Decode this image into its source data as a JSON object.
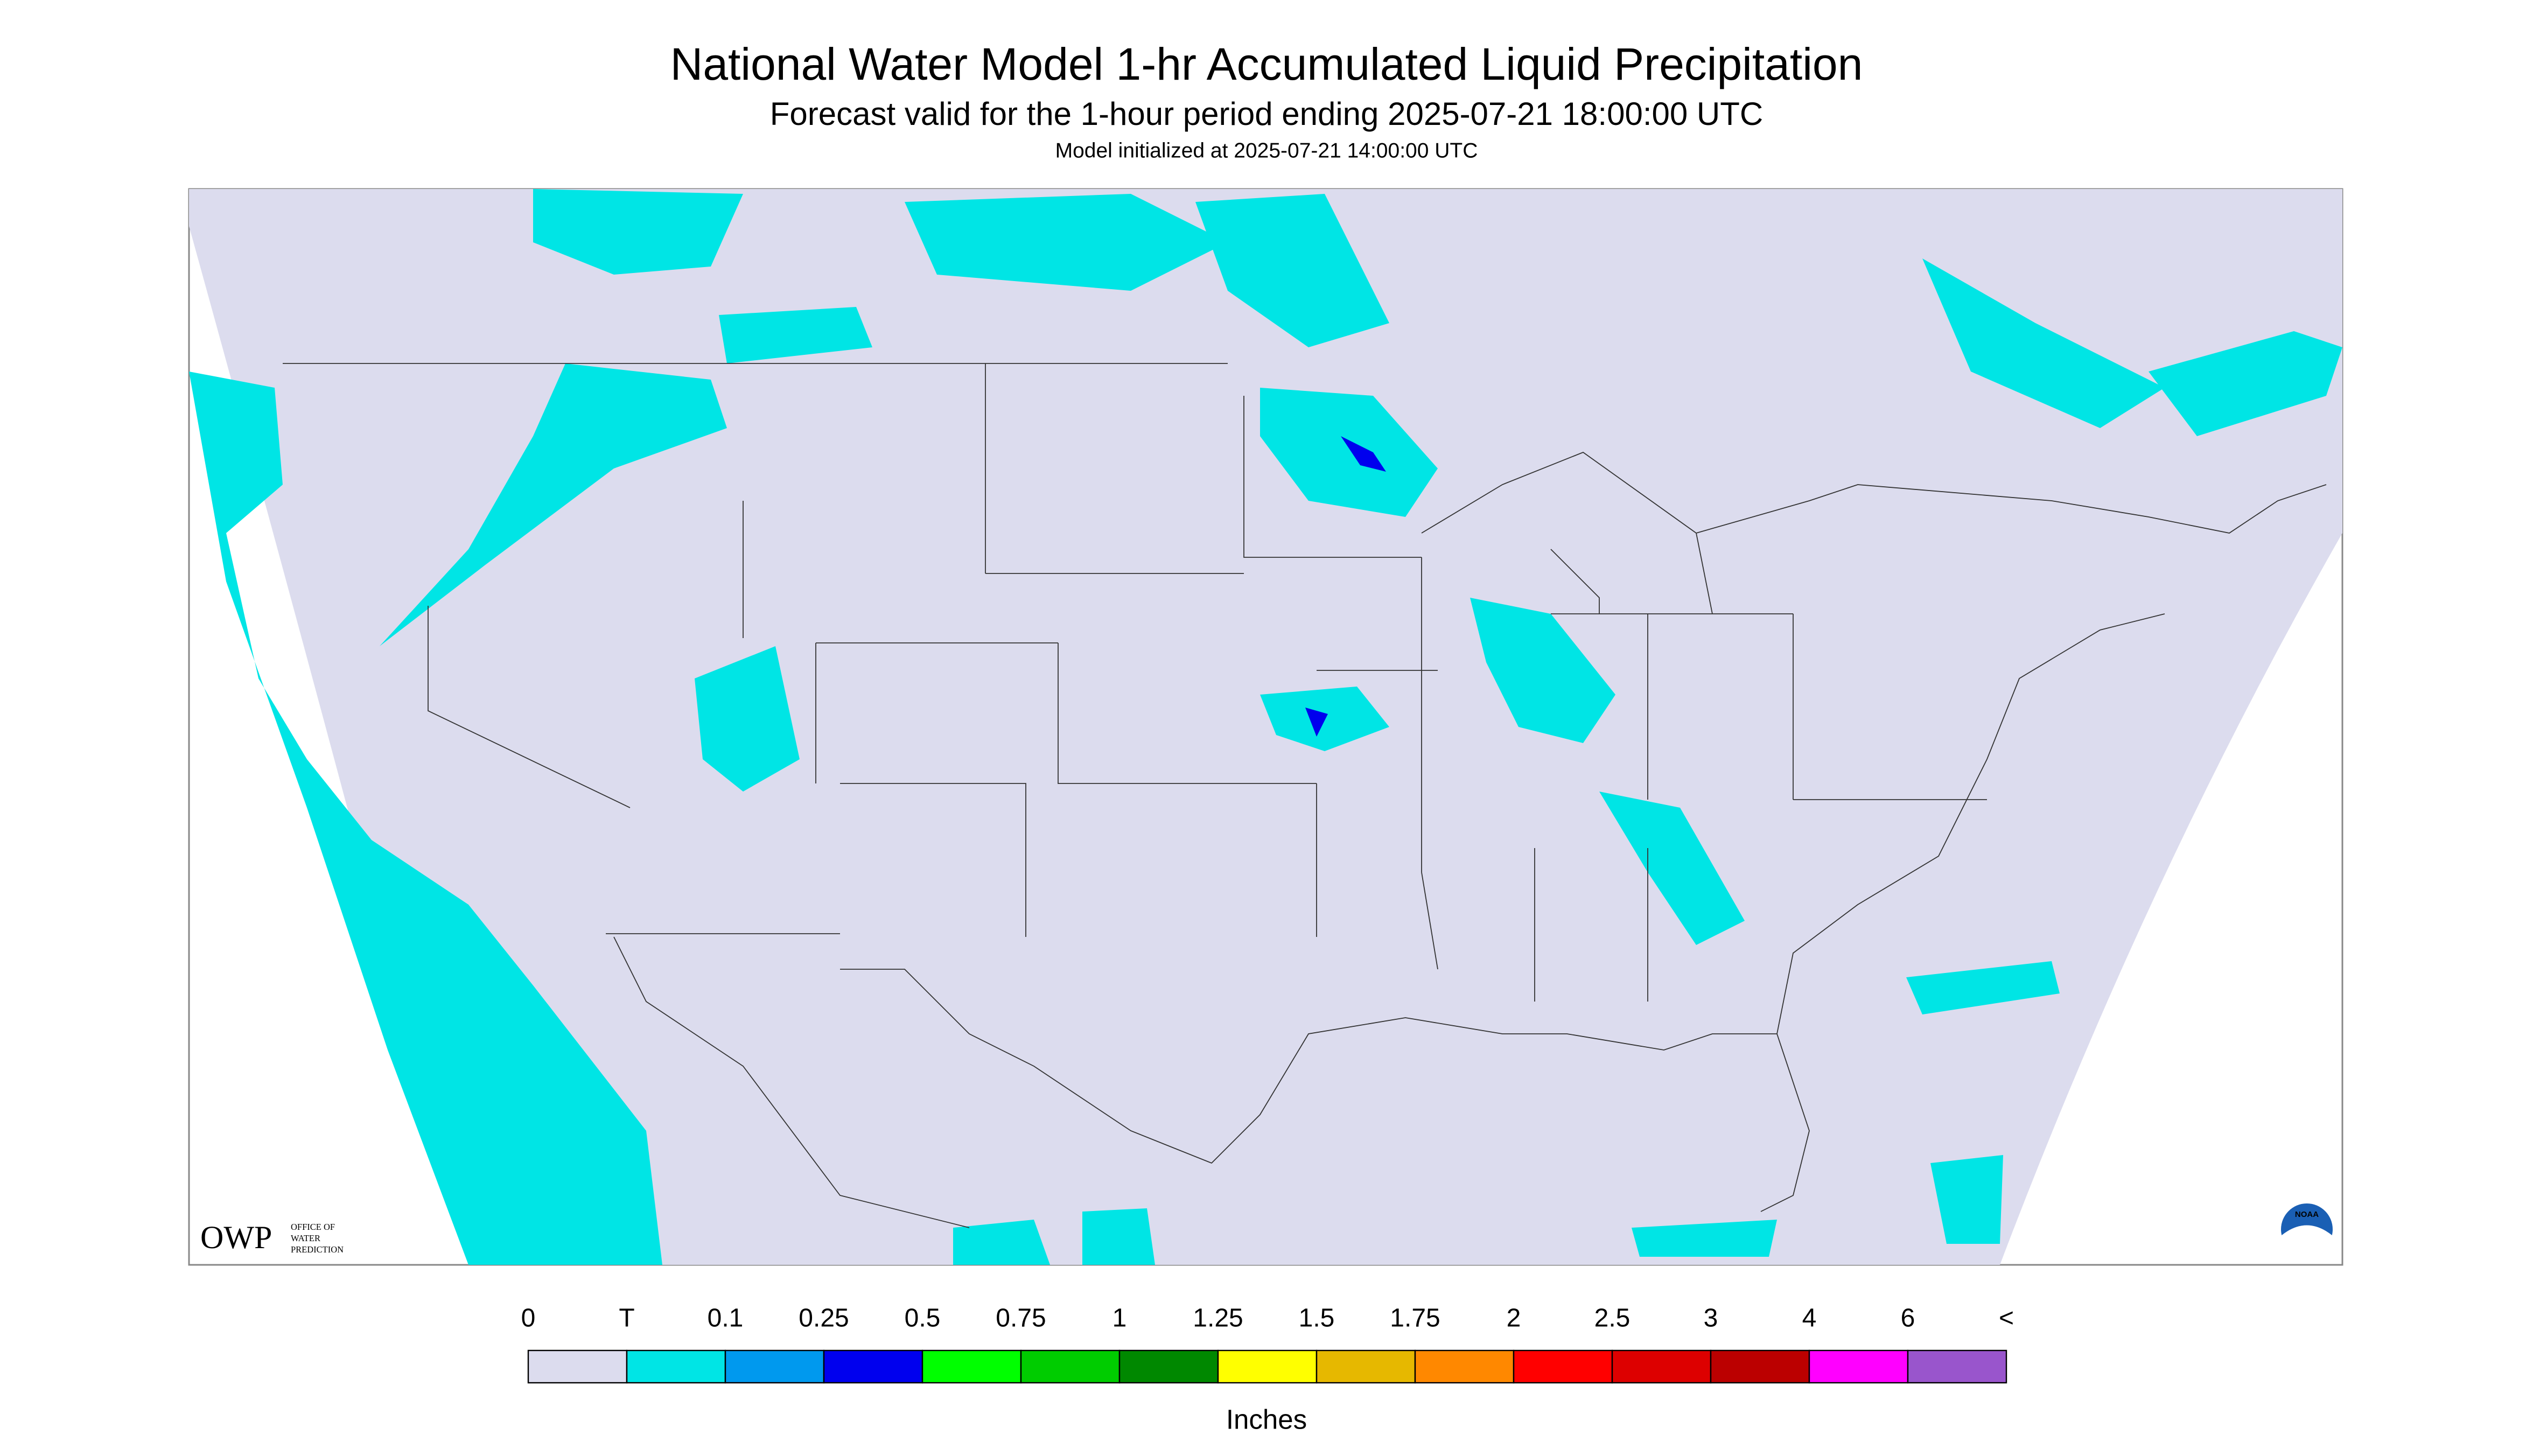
{
  "header": {
    "title": "National Water Model 1-hr Accumulated Liquid Precipitation",
    "subtitle": "Forecast valid for the 1-hour period ending 2025-07-21 18:00:00 UTC",
    "init": "Model initialized at 2025-07-21 14:00:00 UTC"
  },
  "legend": {
    "labels": [
      "0",
      "T",
      "0.1",
      "0.25",
      "0.5",
      "0.75",
      "1",
      "1.25",
      "1.5",
      "1.75",
      "2",
      "2.5",
      "3",
      "4",
      "6",
      "<"
    ],
    "colors": [
      "#dcdcee",
      "#00e5e5",
      "#0099ee",
      "#0000ee",
      "#00ff00",
      "#00cc00",
      "#008800",
      "#ffff00",
      "#e6b800",
      "#ff8800",
      "#ff0000",
      "#dd0000",
      "#bb0000",
      "#ff00ff",
      "#9955cc"
    ],
    "unit": "Inches"
  },
  "logo": {
    "name": "OWP",
    "text": [
      "OFFICE OF",
      "WATER",
      "PREDICTION"
    ],
    "agency": "NOAA"
  }
}
